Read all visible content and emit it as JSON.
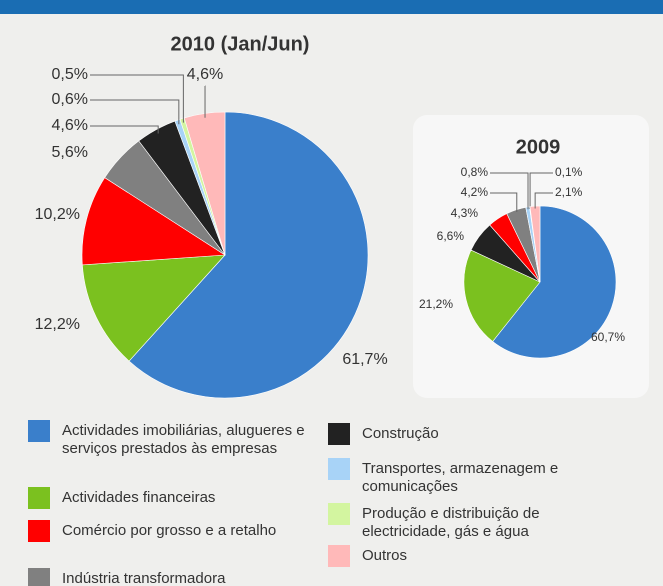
{
  "chart_data": [
    {
      "type": "pie",
      "title": "2010 (Jan/Jun)",
      "categories": [
        "Actividades imobiliárias, alugueres e serviços prestados às empresas",
        "Actividades financeiras",
        "Comércio por grosso e a retalho",
        "Indústria transformadora",
        "Construção",
        "Transportes, armazenagem e comunicações",
        "Produção e distribuição de electricidade, gás e água",
        "Outros"
      ],
      "values": [
        61.7,
        12.2,
        10.2,
        5.6,
        4.6,
        0.6,
        0.5,
        4.6
      ],
      "value_labels": [
        "61,7%",
        "12,2%",
        "10,2%",
        "5,6%",
        "4,6%",
        "0,6%",
        "0,5%",
        "4,6%"
      ],
      "colors": [
        "#3a7fcb",
        "#7bc11f",
        "#ff0000",
        "#808080",
        "#222222",
        "#a8d3f7",
        "#d3f5a0",
        "#ffb9b9"
      ]
    },
    {
      "type": "pie",
      "title": "2009",
      "values": [
        60.7,
        21.2,
        6.6,
        4.3,
        4.2,
        0.8,
        0.1,
        2.1
      ],
      "value_labels": [
        "60,7%",
        "21,2%",
        "6,6%",
        "4,3%",
        "4,2%",
        "0,8%",
        "0,1%",
        "2,1%"
      ],
      "colors": [
        "#3a7fcb",
        "#7bc11f",
        "#222222",
        "#ff0000",
        "#808080",
        "#a8d3f7",
        "#d3f5a0",
        "#ffb9b9"
      ]
    }
  ]
}
